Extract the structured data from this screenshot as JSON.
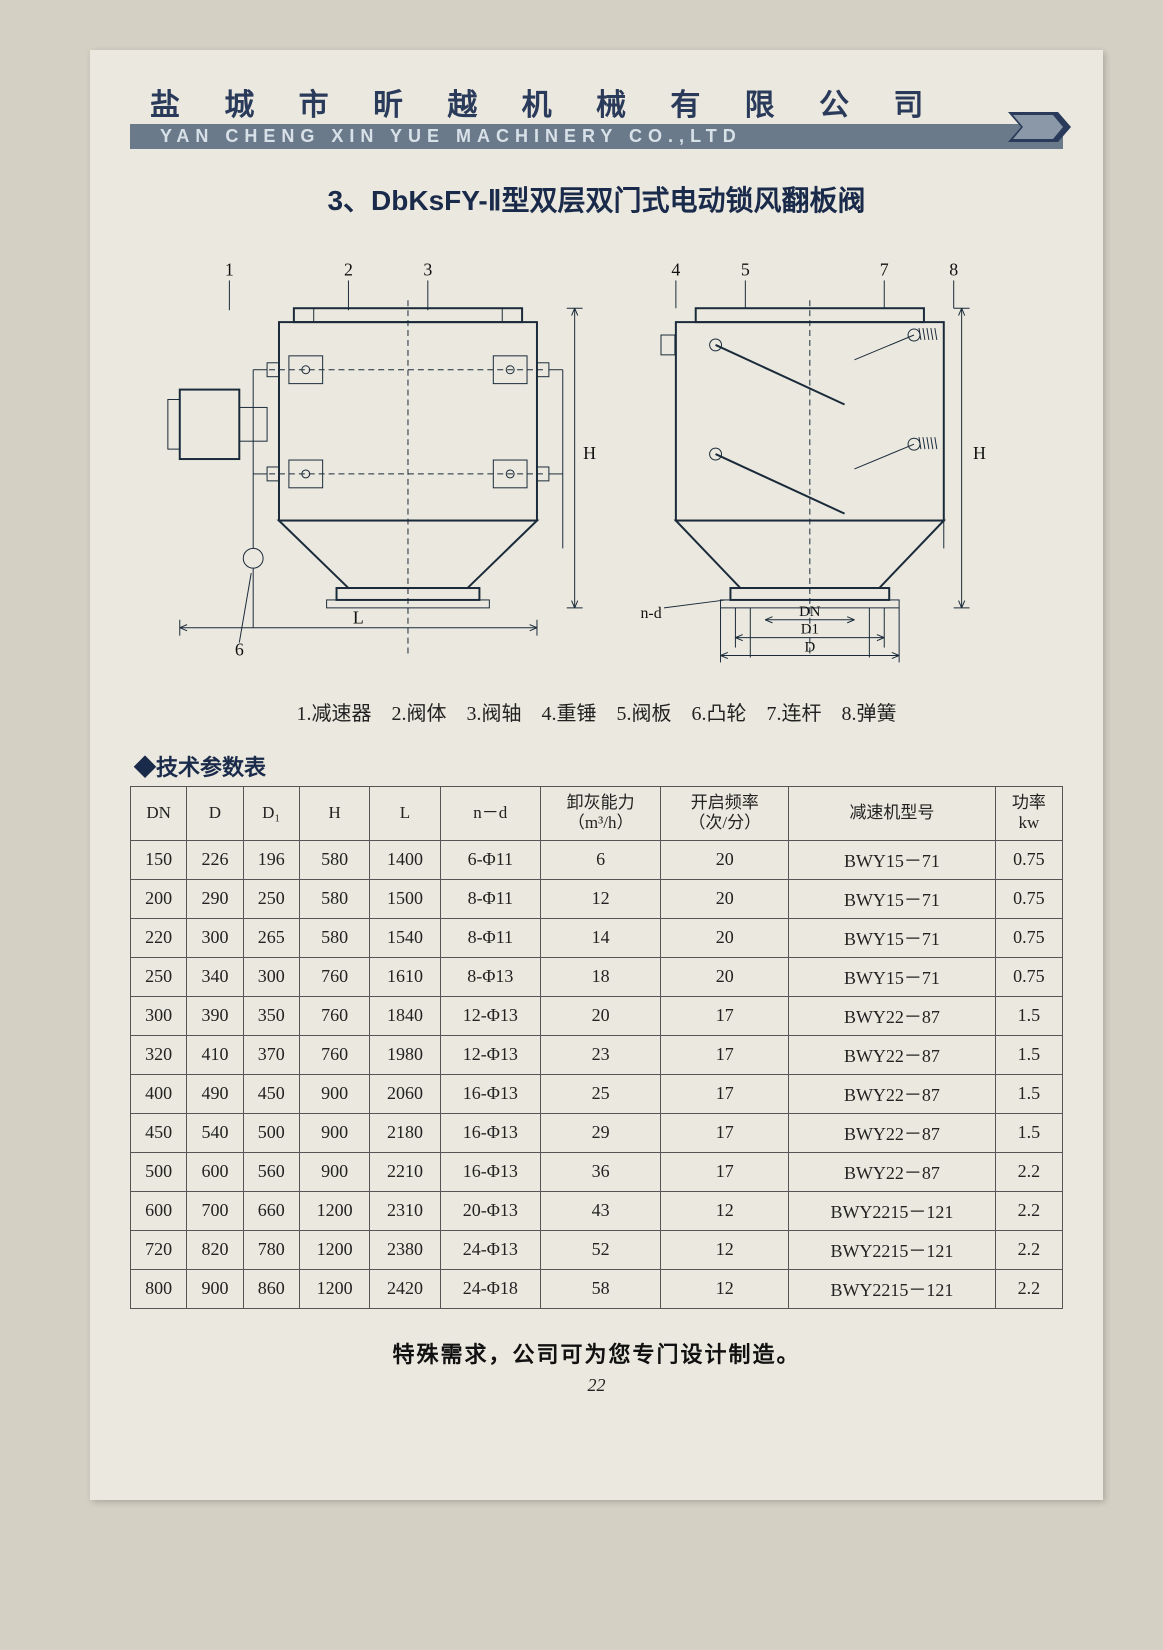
{
  "header": {
    "company_cn": "盐 城 市 昕 越 机 械 有 限 公 司",
    "company_en": "YAN CHENG XIN YUE MACHINERY CO.,LTD"
  },
  "title": "3、DbKsFY-Ⅱ型双层双门式电动锁风翻板阀",
  "diagram": {
    "callouts_left": [
      "1",
      "2",
      "3"
    ],
    "callouts_right": [
      "4",
      "5",
      "7",
      "8"
    ],
    "callout_6": "6",
    "dim_labels": {
      "L": "L",
      "H": "H",
      "nd": "n-d",
      "DN": "DN",
      "D1": "D1",
      "D": "D"
    },
    "stroke": "#1a2a3a",
    "thin": 1,
    "thick": 2,
    "dash": "6,4"
  },
  "legend": "1.减速器　2.阀体　3.阀轴　4.重锤　5.阀板　6.凸轮　7.连杆　8.弹簧",
  "table": {
    "title": "◆技术参数表",
    "columns": [
      {
        "label": "DN"
      },
      {
        "label": "D"
      },
      {
        "label": "D₁"
      },
      {
        "label": "H"
      },
      {
        "label": "L"
      },
      {
        "label": "n－d"
      },
      {
        "label": "卸灰能力\n（m³/h）"
      },
      {
        "label": "开启频率\n（次/分）"
      },
      {
        "label": "减速机型号"
      },
      {
        "label": "功率\nkw"
      }
    ],
    "rows": [
      [
        "150",
        "226",
        "196",
        "580",
        "1400",
        "6-Φ11",
        "6",
        "20",
        "BWY15－71",
        "0.75"
      ],
      [
        "200",
        "290",
        "250",
        "580",
        "1500",
        "8-Φ11",
        "12",
        "20",
        "BWY15－71",
        "0.75"
      ],
      [
        "220",
        "300",
        "265",
        "580",
        "1540",
        "8-Φ11",
        "14",
        "20",
        "BWY15－71",
        "0.75"
      ],
      [
        "250",
        "340",
        "300",
        "760",
        "1610",
        "8-Φ13",
        "18",
        "20",
        "BWY15－71",
        "0.75"
      ],
      [
        "300",
        "390",
        "350",
        "760",
        "1840",
        "12-Φ13",
        "20",
        "17",
        "BWY22－87",
        "1.5"
      ],
      [
        "320",
        "410",
        "370",
        "760",
        "1980",
        "12-Φ13",
        "23",
        "17",
        "BWY22－87",
        "1.5"
      ],
      [
        "400",
        "490",
        "450",
        "900",
        "2060",
        "16-Φ13",
        "25",
        "17",
        "BWY22－87",
        "1.5"
      ],
      [
        "450",
        "540",
        "500",
        "900",
        "2180",
        "16-Φ13",
        "29",
        "17",
        "BWY22－87",
        "1.5"
      ],
      [
        "500",
        "600",
        "560",
        "900",
        "2210",
        "16-Φ13",
        "36",
        "17",
        "BWY22－87",
        "2.2"
      ],
      [
        "600",
        "700",
        "660",
        "1200",
        "2310",
        "20-Φ13",
        "43",
        "12",
        "BWY2215－121",
        "2.2"
      ],
      [
        "720",
        "820",
        "780",
        "1200",
        "2380",
        "24-Φ13",
        "52",
        "12",
        "BWY2215－121",
        "2.2"
      ],
      [
        "800",
        "900",
        "860",
        "1200",
        "2420",
        "24-Φ18",
        "58",
        "12",
        "BWY2215－121",
        "2.2"
      ]
    ]
  },
  "footer_note": "特殊需求，公司可为您专门设计制造。",
  "page_number": "22"
}
